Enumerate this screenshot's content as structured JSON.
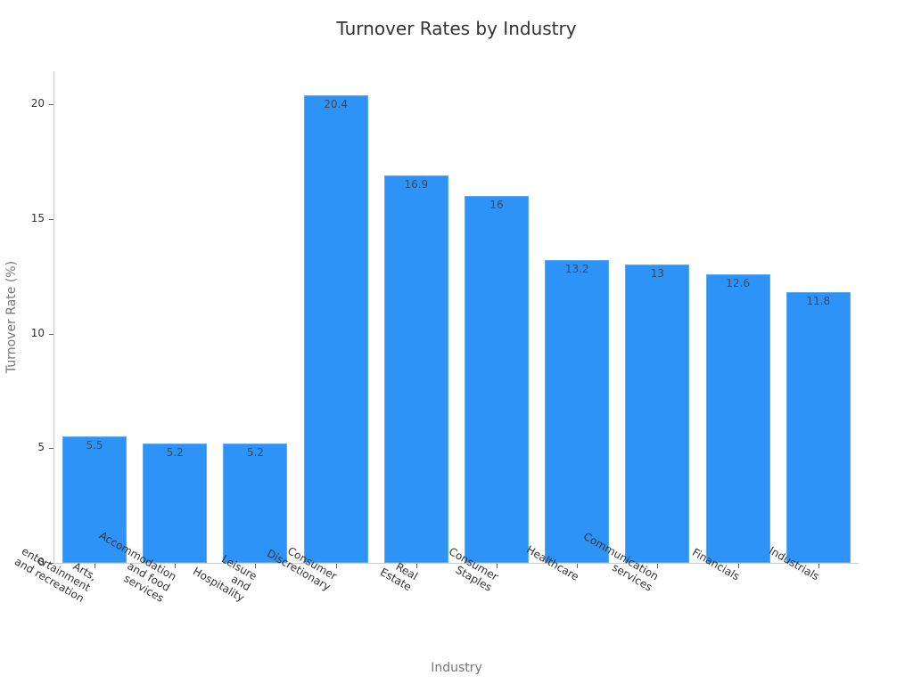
{
  "chart_data": {
    "type": "bar",
    "title": "Turnover Rates by Industry",
    "xlabel": "Industry",
    "ylabel": "Turnover Rate (%)",
    "ylim": [
      0,
      21.5
    ],
    "yticks": [
      0,
      5,
      10,
      15,
      20
    ],
    "grid": false,
    "legend": null,
    "categories": [
      "Arts, entertainment and recreation",
      "Accommodation and food services",
      "Leisure and Hospitality",
      "Consumer Discretionary",
      "Real Estate",
      "Consumer Staples",
      "Healthcare",
      "Communication services",
      "Financials",
      "Industrials"
    ],
    "category_labels_wrapped": [
      "Arts,\nentertainment\nand recreation",
      "Accommodation\nand food\nservices",
      "Leisure\nand\nHospitality",
      "Consumer\nDiscretionary",
      "Real\nEstate",
      "Consumer\nStaples",
      "Healthcare",
      "Communication\nservices",
      "Financials",
      "Industrials"
    ],
    "values": [
      5.5,
      5.2,
      5.2,
      20.4,
      16.9,
      16,
      13.2,
      13,
      12.6,
      11.8
    ],
    "value_labels": [
      "5.5",
      "5.2",
      "5.2",
      "20.4",
      "16.9",
      "16",
      "13.2",
      "13",
      "12.6",
      "11.8"
    ],
    "bar_color": "#2e93f6"
  }
}
